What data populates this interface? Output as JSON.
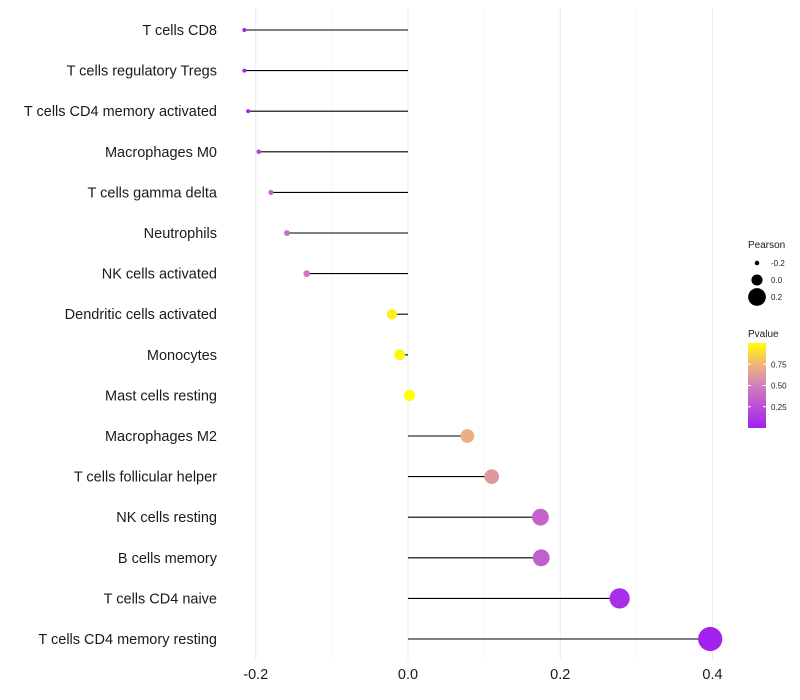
{
  "chart_data": {
    "type": "lollipop",
    "title": "",
    "xlabel": "",
    "ylabel": "",
    "xlim": [
      -0.2,
      0.4
    ],
    "x_ticks": [
      -0.2,
      0.0,
      0.2,
      0.4
    ],
    "x_tick_labels": [
      "-0.2",
      "0.0",
      "0.2",
      "0.4"
    ],
    "grid": true,
    "categories": [
      "T cells CD8",
      "T cells regulatory  Tregs",
      "T cells CD4 memory activated",
      "Macrophages M0",
      "T cells gamma delta",
      "Neutrophils",
      "NK cells activated",
      "Dendritic cells activated",
      "Monocytes",
      "Mast cells resting",
      "Macrophages M2",
      "T cells follicular helper",
      "NK cells resting",
      "B cells memory",
      "T cells CD4 naive",
      "T cells CD4 memory resting"
    ],
    "pearson": [
      -0.215,
      -0.215,
      -0.21,
      -0.196,
      -0.18,
      -0.159,
      -0.133,
      -0.021,
      -0.011,
      0.002,
      0.078,
      0.11,
      0.174,
      0.175,
      0.278,
      0.397
    ],
    "pvalue": [
      0.02,
      0.03,
      0.04,
      0.2,
      0.35,
      0.4,
      0.45,
      0.95,
      0.98,
      1.0,
      0.72,
      0.62,
      0.35,
      0.33,
      0.08,
      0.01
    ],
    "legend": {
      "placement": "right",
      "size_title": "Pearson",
      "size_values": [
        -0.2,
        0.0,
        0.2
      ],
      "size_labels": [
        "-0.2",
        "0.0",
        "0.2"
      ],
      "color_title": "Pvalue",
      "color_ticks": [
        0.25,
        0.5,
        0.75
      ],
      "color_labels": [
        "0.25",
        "0.50",
        "0.75"
      ],
      "color_range": [
        0.0,
        1.0
      ]
    },
    "colors": {
      "low": "#a020f0",
      "mid": "#d27fbe",
      "high_mid": "#f0b47a",
      "high": "#ffff00",
      "stem": "#000000",
      "grid": "#ebebeb"
    }
  }
}
